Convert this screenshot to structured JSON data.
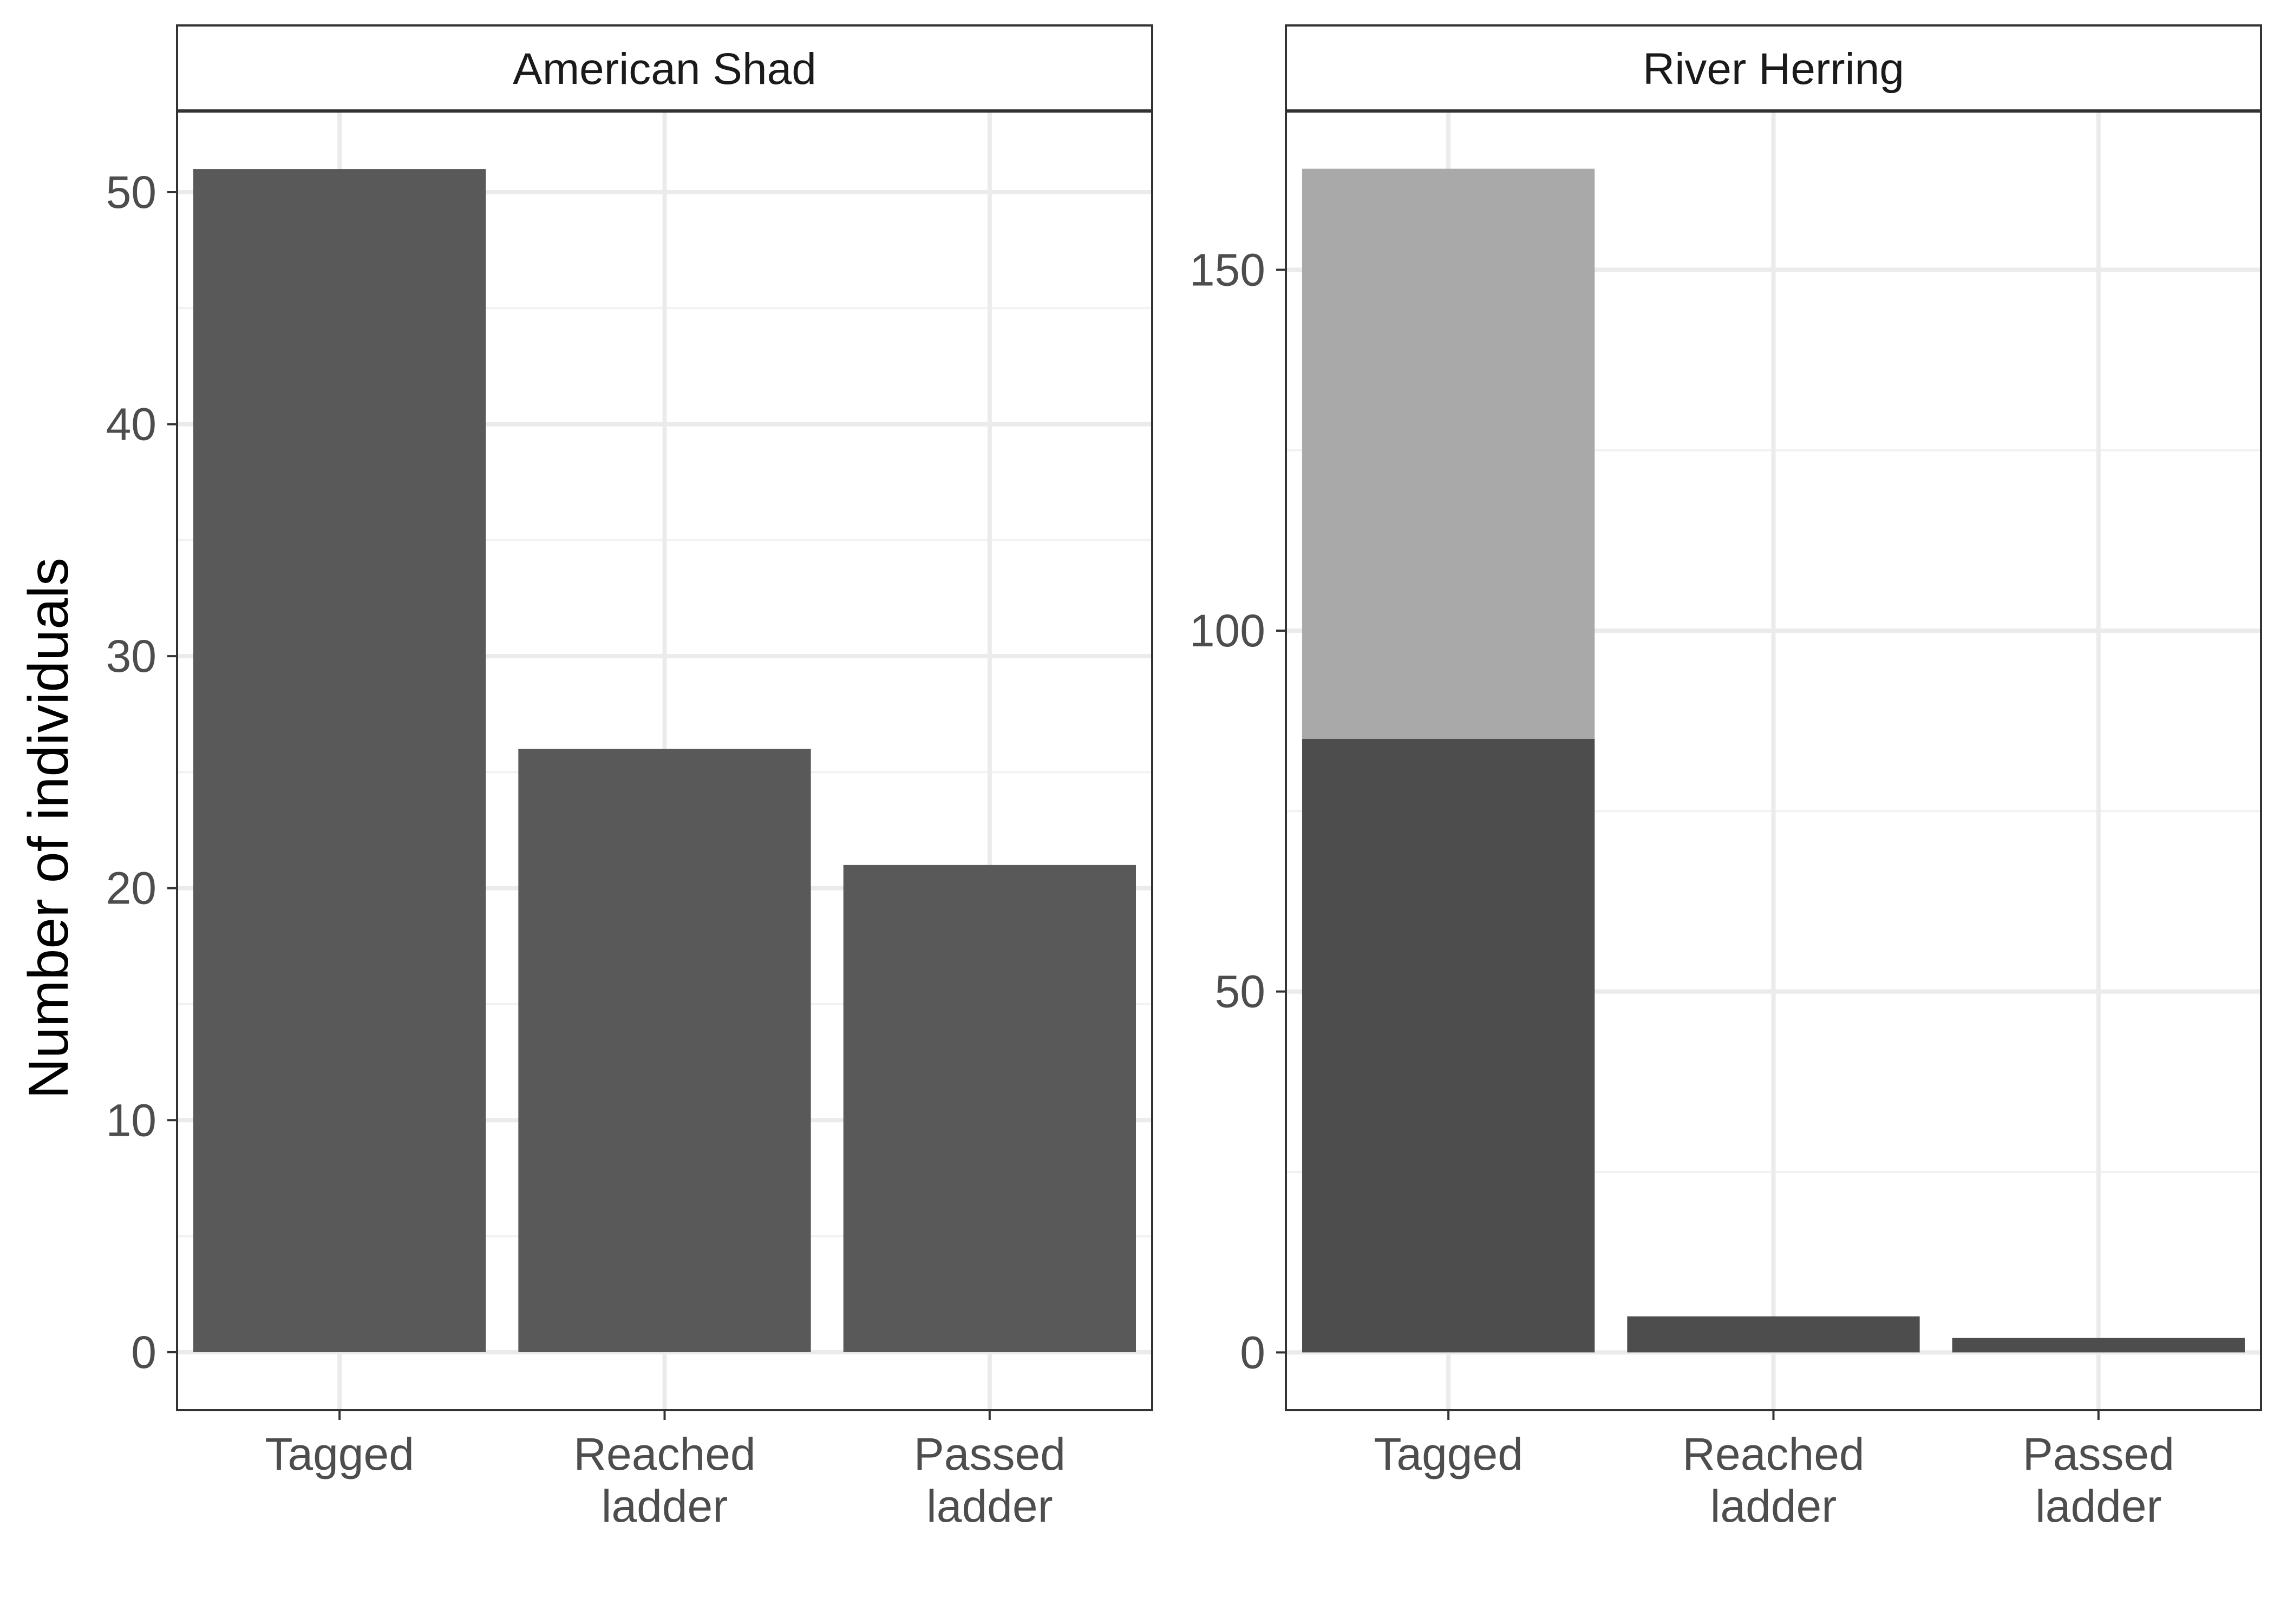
{
  "chart_data": [
    {
      "type": "bar",
      "title": "American Shad",
      "ylabel": "Number of individuals",
      "xlabel": "",
      "categories": [
        [
          "Tagged"
        ],
        [
          "Reached",
          "ladder"
        ],
        [
          "Passed",
          "ladder"
        ]
      ],
      "series": [
        {
          "values": [
            51,
            26,
            21
          ],
          "color": "#595959"
        }
      ],
      "ylim": [
        -2.5,
        53.5
      ],
      "yticks": [
        "0",
        "10",
        "20",
        "30",
        "40",
        "50"
      ],
      "grid": true
    },
    {
      "type": "bar",
      "stacked": true,
      "title": "River Herring",
      "ylabel": "",
      "xlabel": "",
      "categories": [
        [
          "Tagged"
        ],
        [
          "Reached",
          "ladder"
        ],
        [
          "Passed",
          "ladder"
        ]
      ],
      "series": [
        {
          "values": [
            85,
            5,
            2
          ],
          "color": "#4d4d4d"
        },
        {
          "values": [
            79,
            0,
            0
          ],
          "color": "#a9a9a9"
        }
      ],
      "ylim": [
        -8,
        172
      ],
      "yticks": [
        "0",
        "50",
        "100",
        "150"
      ],
      "grid": true
    }
  ]
}
